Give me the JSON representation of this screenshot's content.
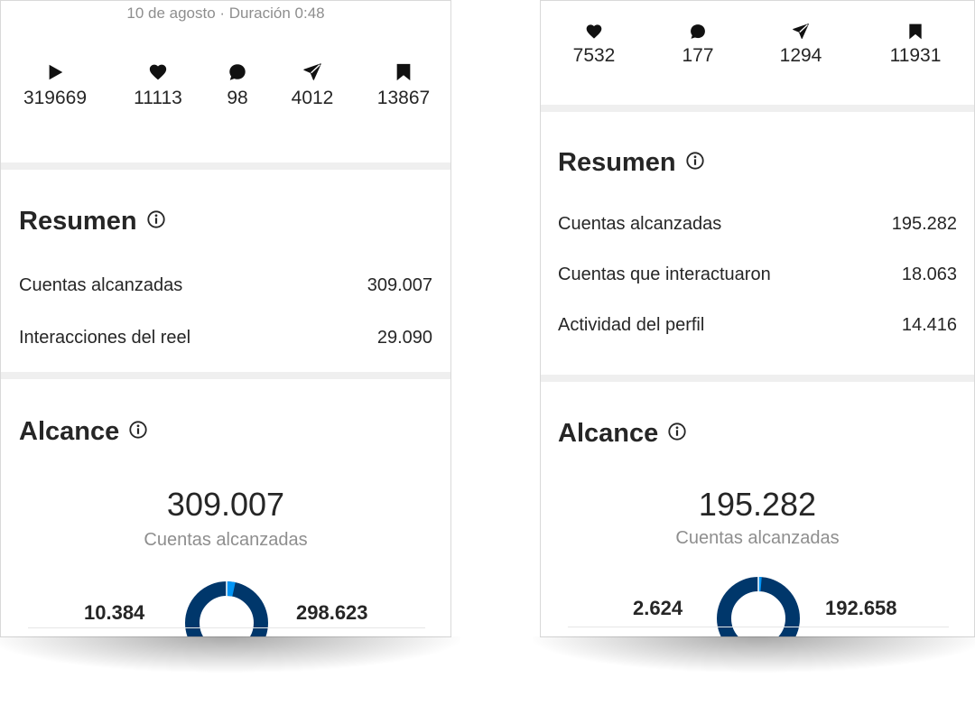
{
  "left": {
    "date_line": "10 de agosto · Duración 0:48",
    "stats": [
      {
        "icon": "play-icon",
        "value": "319669"
      },
      {
        "icon": "heart-icon",
        "value": "11113"
      },
      {
        "icon": "comment-icon",
        "value": "98"
      },
      {
        "icon": "share-icon",
        "value": "4012"
      },
      {
        "icon": "bookmark-icon",
        "value": "13867"
      }
    ],
    "summary": {
      "title": "Resumen",
      "rows": [
        {
          "label": "Cuentas alcanzadas",
          "value": "309.007"
        },
        {
          "label": "Interacciones del reel",
          "value": "29.090"
        }
      ]
    },
    "reach": {
      "title": "Alcance",
      "total": "309.007",
      "caption": "Cuentas alcanzadas",
      "followers": "10.384",
      "non_followers": "298.623",
      "followers_fraction": 0.034
    }
  },
  "right": {
    "stats": [
      {
        "icon": "heart-icon",
        "value": "7532"
      },
      {
        "icon": "comment-icon",
        "value": "177"
      },
      {
        "icon": "share-icon",
        "value": "1294"
      },
      {
        "icon": "bookmark-icon",
        "value": "11931"
      }
    ],
    "summary": {
      "title": "Resumen",
      "rows": [
        {
          "label": "Cuentas alcanzadas",
          "value": "195.282"
        },
        {
          "label": "Cuentas que interactuaron",
          "value": "18.063"
        },
        {
          "label": "Actividad del perfil",
          "value": "14.416"
        }
      ]
    },
    "reach": {
      "title": "Alcance",
      "total": "195.282",
      "caption": "Cuentas alcanzadas",
      "followers": "2.624",
      "non_followers": "192.658",
      "followers_fraction": 0.013
    }
  },
  "colors": {
    "donut_main": "#00376b",
    "donut_accent": "#0095f6",
    "divider": "#efefef",
    "secondary_text": "#8e8e8e"
  }
}
